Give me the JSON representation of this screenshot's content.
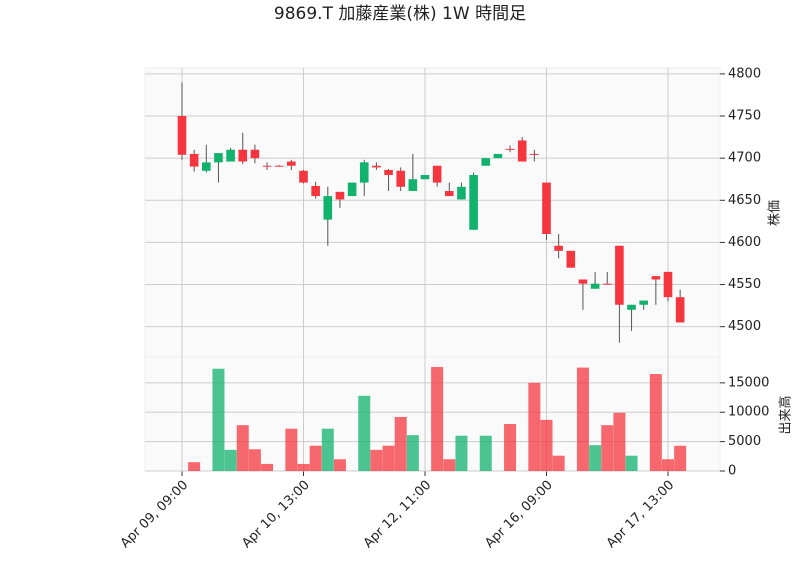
{
  "chart_data": {
    "type": "candlestick",
    "title": "9869.T 加藤産業(株) 1W 時間足",
    "ylabel": "株価",
    "y2label": "出来高",
    "categories": [
      "Apr 09, 09:00",
      null,
      null,
      null,
      null,
      null,
      null,
      null,
      null,
      null,
      "Apr 10, 13:00",
      null,
      null,
      null,
      null,
      null,
      null,
      null,
      null,
      null,
      "Apr 12, 11:00",
      null,
      null,
      null,
      null,
      null,
      null,
      null,
      null,
      null,
      "Apr 16, 09:00",
      null,
      null,
      null,
      null,
      null,
      null,
      null,
      null,
      null,
      "Apr 17, 13:00",
      null
    ],
    "open": [
      4750,
      4705,
      4685,
      4695,
      4696,
      4710,
      4710,
      4691,
      4691,
      4696,
      4685,
      4667,
      4627,
      4660,
      4655,
      4671,
      4691,
      4686,
      4685,
      4661,
      4675,
      4691,
      4661,
      4651,
      4615,
      4691,
      4700,
      4711,
      4721,
      4705,
      4671,
      4596,
      4590,
      4556,
      4545,
      4551,
      4596,
      4520,
      4526,
      4560,
      4565,
      4535
    ],
    "high": [
      4790,
      4710,
      4716,
      4706,
      4712,
      4730,
      4716,
      4695,
      4692,
      4698,
      4686,
      4672,
      4666,
      4660,
      4671,
      4698,
      4695,
      4687,
      4689,
      4705,
      4680,
      4691,
      4671,
      4671,
      4683,
      4700,
      4705,
      4715,
      4725,
      4710,
      4671,
      4610,
      4590,
      4556,
      4565,
      4565,
      4596,
      4526,
      4531,
      4560,
      4565,
      4544
    ],
    "low": [
      4698,
      4684,
      4683,
      4671,
      4696,
      4693,
      4694,
      4686,
      4691,
      4686,
      4670,
      4652,
      4596,
      4641,
      4655,
      4655,
      4686,
      4661,
      4661,
      4661,
      4675,
      4666,
      4655,
      4651,
      4615,
      4691,
      4700,
      4707,
      4696,
      4696,
      4603,
      4581,
      4570,
      4520,
      4545,
      4550,
      4481,
      4495,
      4520,
      4526,
      4530,
      4505
    ],
    "close": [
      4704,
      4690,
      4695,
      4706,
      4710,
      4696,
      4700,
      4690,
      4691,
      4691,
      4671,
      4655,
      4655,
      4651,
      4671,
      4695,
      4689,
      4680,
      4666,
      4675,
      4680,
      4671,
      4655,
      4666,
      4680,
      4700,
      4705,
      4710,
      4696,
      4704,
      4610,
      4590,
      4570,
      4551,
      4551,
      4550,
      4526,
      4526,
      4531,
      4556,
      4535,
      4505
    ],
    "volume": [
      0,
      1500,
      0,
      17400,
      3600,
      7800,
      3700,
      1200,
      0,
      7200,
      1200,
      4300,
      7200,
      2000,
      0,
      12800,
      3600,
      4300,
      9200,
      6100,
      0,
      17700,
      2000,
      6000,
      0,
      6000,
      0,
      8000,
      0,
      15000,
      8700,
      2600,
      0,
      17600,
      4400,
      7800,
      9900,
      2600,
      0,
      16500,
      2000,
      4300
    ],
    "up_color": "#10b26e",
    "down_color": "#f5363f",
    "ylim": [
      4464,
      4807
    ],
    "yticks": [
      4500,
      4550,
      4600,
      4650,
      4700,
      4750,
      4800
    ],
    "y2lim": [
      0,
      19400
    ],
    "y2ticks": [
      0,
      5000,
      10000,
      15000
    ],
    "grid": true
  }
}
